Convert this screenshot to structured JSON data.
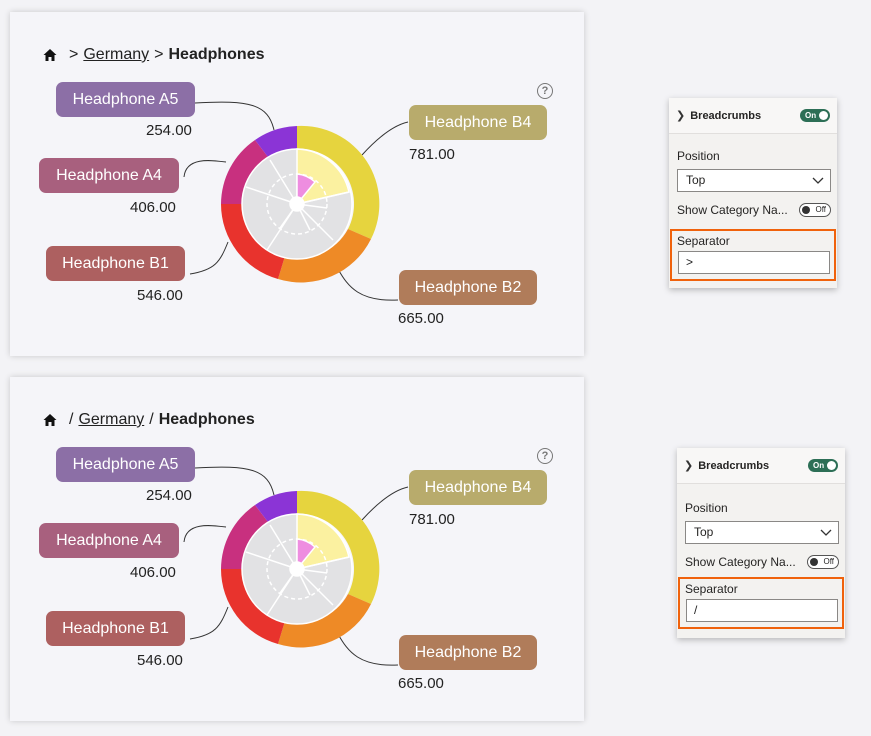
{
  "reports": [
    {
      "breadcrumb": {
        "separator": ">",
        "path": [
          "Germany",
          "Headphones"
        ]
      },
      "help": "?",
      "labels": [
        {
          "name": "Headphone A5",
          "value": "254.00",
          "color": "#8c6fa6"
        },
        {
          "name": "Headphone A4",
          "value": "406.00",
          "color": "#a8607e"
        },
        {
          "name": "Headphone B1",
          "value": "546.00",
          "color": "#ad6060"
        },
        {
          "name": "Headphone B4",
          "value": "781.00",
          "color": "#b8ab6c"
        },
        {
          "name": "Headphone B2",
          "value": "665.00",
          "color": "#b07c5a"
        }
      ]
    },
    {
      "breadcrumb": {
        "separator": "/",
        "path": [
          "Germany",
          "Headphones"
        ]
      },
      "help": "?",
      "labels": [
        {
          "name": "Headphone A5",
          "value": "254.00",
          "color": "#8c6fa6"
        },
        {
          "name": "Headphone A4",
          "value": "406.00",
          "color": "#a8607e"
        },
        {
          "name": "Headphone B1",
          "value": "546.00",
          "color": "#ad6060"
        },
        {
          "name": "Headphone B4",
          "value": "781.00",
          "color": "#b8ab6c"
        },
        {
          "name": "Headphone B2",
          "value": "665.00",
          "color": "#b07c5a"
        }
      ]
    }
  ],
  "panes": [
    {
      "title": "Breadcrumbs",
      "toggle": "On",
      "position_label": "Position",
      "position_value": "Top",
      "show_category_label": "Show Category Na...",
      "show_category_toggle": "Off",
      "separator_label": "Separator",
      "separator_value": ">"
    },
    {
      "title": "Breadcrumbs",
      "toggle": "On",
      "position_label": "Position",
      "position_value": "Top",
      "show_category_label": "Show Category Na...",
      "show_category_toggle": "Off",
      "separator_label": "Separator",
      "separator_value": "/"
    }
  ],
  "colors": {
    "accent": "#f0620c",
    "toggle_on": "#2d6f56"
  }
}
